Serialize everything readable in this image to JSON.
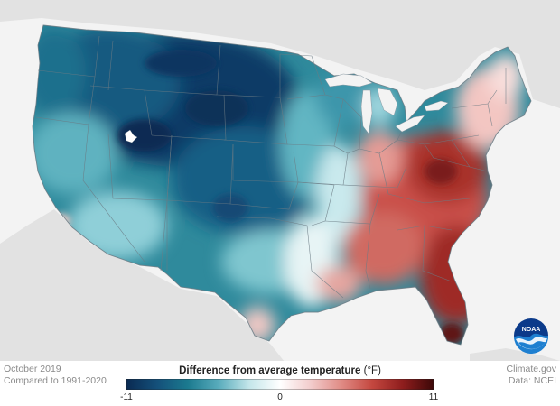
{
  "map": {
    "period": "October 2019",
    "baseline": "Compared to 1991-2020",
    "credit_site": "Climate.gov",
    "credit_data": "Data: NCEI",
    "logo_text": "NOAA"
  },
  "legend": {
    "title": "Difference from average temperature",
    "unit": "(°F)",
    "min_label": "-11",
    "mid_label": "0",
    "max_label": "11",
    "range": [
      -11,
      11
    ],
    "colors": [
      "#0a2a52",
      "#14507a",
      "#1b7a8f",
      "#59acbc",
      "#c4e6ea",
      "#ffffff",
      "#f2cccc",
      "#e08b85",
      "#c4473f",
      "#8e1d1d",
      "#3d0808"
    ]
  },
  "colors": {
    "land_outside": "#e4e4e4",
    "ocean": "#f3f3f3",
    "state_lines": "#6b7b84"
  }
}
